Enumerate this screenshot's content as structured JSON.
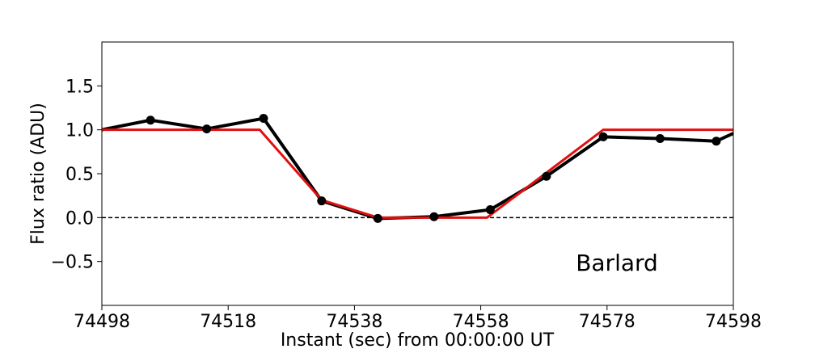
{
  "chart_data": {
    "type": "line",
    "title": "",
    "xlabel": "Instant (sec) from 00:00:00 UT",
    "ylabel": "Flux ratio (ADU)",
    "xlim": [
      74498,
      74598
    ],
    "ylim": [
      -1.0,
      2.0
    ],
    "xticks": [
      74498,
      74518,
      74538,
      74558,
      74578,
      74598
    ],
    "xtick_labels": [
      "74498",
      "74518",
      "74538",
      "74558",
      "74578",
      "74598"
    ],
    "yticks": [
      -0.5,
      0.0,
      0.5,
      1.0,
      1.5
    ],
    "ytick_labels": [
      "−0.5",
      "0.0",
      "0.5",
      "1.0",
      "1.5"
    ],
    "grid": false,
    "legend": "none",
    "reference_line": {
      "y": 0.0,
      "style": "dashed",
      "color": "#000000"
    },
    "annotation": "Barlard",
    "series": [
      {
        "color": "#000000",
        "markers": true,
        "x": [
          74498.0,
          74505.7,
          74514.6,
          74523.6,
          74532.8,
          74541.7,
          74550.6,
          74559.5,
          74568.4,
          74577.4,
          74586.4,
          74595.3,
          74598.0
        ],
        "y": [
          1.0,
          1.11,
          1.01,
          1.13,
          0.19,
          -0.01,
          0.01,
          0.09,
          0.47,
          0.92,
          0.9,
          0.87,
          0.96
        ]
      },
      {
        "color": "#e01010",
        "markers": false,
        "x": [
          74498.0,
          74523.0,
          74532.8,
          74541.7,
          74559.0,
          74577.4,
          74598.0
        ],
        "y": [
          1.0,
          1.0,
          0.2,
          0.0,
          0.0,
          1.0,
          1.0
        ]
      }
    ]
  }
}
